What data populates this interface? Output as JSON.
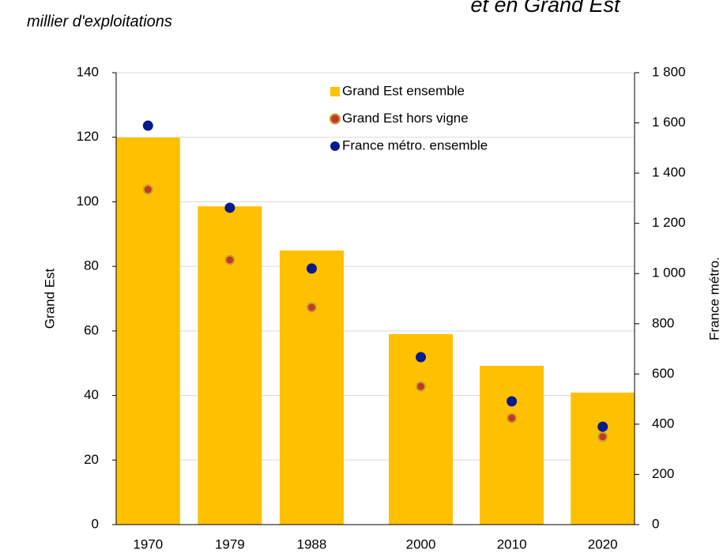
{
  "chart_data": {
    "type": "bar",
    "title": "et en Grand Est",
    "subtitle": "millier d'exploitations",
    "y_label": "Grand Est",
    "y2_label": "France métro.",
    "x": [
      1970,
      1979,
      1988,
      2000,
      2010,
      2020
    ],
    "xlim": [
      1966.5,
      2023.5
    ],
    "ylim": [
      0,
      140
    ],
    "yticks": [
      0,
      20,
      40,
      60,
      80,
      100,
      120,
      140
    ],
    "y2lim": [
      0,
      1800
    ],
    "y2ticks": [
      0,
      200,
      400,
      600,
      800,
      {
        "value": 1000,
        "label": "1 000"
      },
      {
        "value": 1200,
        "label": "1 200"
      },
      {
        "value": 1400,
        "label": "1 400"
      },
      {
        "value": 1600,
        "label": "1 600"
      },
      {
        "value": 1800,
        "label": "1 800"
      }
    ],
    "grid": true,
    "legend": "top",
    "series": [
      {
        "name": "Grand Est ensemble",
        "type": "bar",
        "color": "#ffc000",
        "values": [
          119.9,
          98.6,
          84.9,
          59.0,
          49.2,
          40.9
        ]
      },
      {
        "name": "Grand Est hors vigne",
        "type": "scatter",
        "color": "#c0392b",
        "values": [
          103.8,
          82.0,
          67.3,
          42.8,
          33.0,
          27.2
        ]
      },
      {
        "name": "France métro. ensemble",
        "type": "scatter",
        "color": "#0a1a8c",
        "axis": "y2",
        "values": [
          1589,
          1262,
          1020,
          667,
          491,
          390
        ]
      }
    ]
  }
}
